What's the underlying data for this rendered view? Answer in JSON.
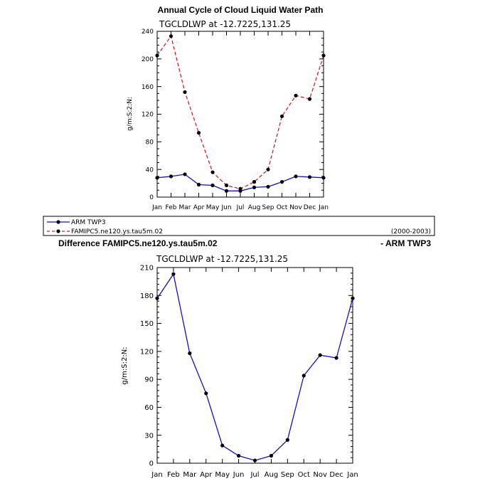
{
  "chart_data": [
    {
      "type": "line",
      "title": "Annual Cycle of Cloud Liquid Water Path",
      "subtitle": "TGCLDLWP  at  -12.7225,131.25",
      "ylabel": "g/m:S:2:N:",
      "xlabel": "",
      "ylim": [
        0,
        240
      ],
      "yticks": [
        0,
        40,
        80,
        120,
        160,
        200,
        240
      ],
      "categories": [
        "Jan",
        "Feb",
        "Mar",
        "Apr",
        "May",
        "Jun",
        "Jul",
        "Aug",
        "Sep",
        "Oct",
        "Nov",
        "Dec",
        "Jan"
      ],
      "series": [
        {
          "name": "ARM TWP3",
          "style": "solid",
          "color": "#1010cc",
          "values": [
            28,
            30,
            33,
            18,
            17,
            9,
            9,
            14,
            15,
            22,
            30,
            29,
            28
          ]
        },
        {
          "name": "FAMIPC5.ne120.ys.tau5m.02",
          "style": "dashed",
          "color": "#e02020",
          "values": [
            205,
            233,
            152,
            93,
            36,
            17,
            12,
            22,
            40,
            117,
            147,
            142,
            205
          ]
        }
      ],
      "legend": {
        "entries": [
          "ARM TWP3",
          "FAMIPC5.ne120.ys.tau5m.02"
        ],
        "period": "(2000-2003)",
        "placement": "bottom"
      },
      "grid": false
    },
    {
      "type": "line",
      "title_left": "Difference FAMIPC5.ne120.ys.tau5m.02",
      "title_right": "- ARM TWP3",
      "subtitle": "TGCLDLWP  at  -12.7225,131.25",
      "ylabel": "g/m:S:2:N:",
      "xlabel": "",
      "ylim": [
        0,
        210
      ],
      "yticks": [
        0,
        30,
        60,
        90,
        120,
        150,
        180,
        210
      ],
      "categories": [
        "Jan",
        "Feb",
        "Mar",
        "Apr",
        "May",
        "Jun",
        "Jul",
        "Aug",
        "Sep",
        "Oct",
        "Nov",
        "Dec",
        "Jan"
      ],
      "series": [
        {
          "style": "solid",
          "color": "#1010cc",
          "values": [
            177,
            203,
            118,
            75,
            19,
            8,
            3,
            8,
            25,
            94,
            116,
            113,
            177
          ]
        }
      ],
      "grid": false
    }
  ]
}
